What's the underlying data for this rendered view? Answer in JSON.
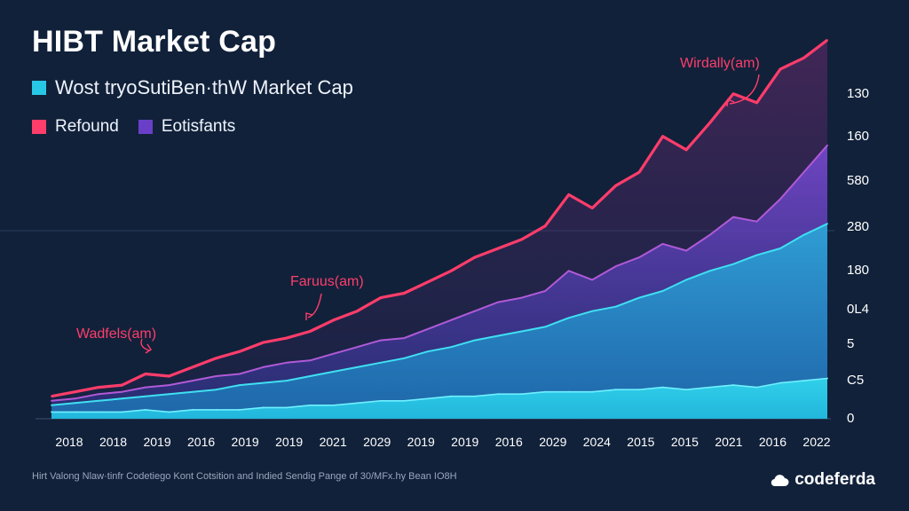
{
  "title": "HIBT Market Cap",
  "footer": "Hirt Valong Nlaw·tinfr Codetiego Kont Cotsition and Indied Sendig Pange of 30/MFx.hy Bean IO8H",
  "brand": {
    "name": "codeferda",
    "icon": "cloud-icon"
  },
  "colors": {
    "background": "#11213a",
    "red": "#ff3d6b",
    "purple": "#6a3fc8",
    "cyan": "#27c8e6"
  },
  "chart_data": {
    "type": "area",
    "title": "HIBT Market Cap",
    "legend": [
      {
        "name": "Wost tryoSutiBen·thW Market Cap",
        "color": "#27c8e6"
      },
      {
        "name": "Refound",
        "color": "#ff3d6b"
      },
      {
        "name": "Eotisfants",
        "color": "#6a3fc8"
      }
    ],
    "legend_placement": "top-left",
    "x_ticks": [
      "2018",
      "2018",
      "2019",
      "2016",
      "2019",
      "2019",
      "2021",
      "2029",
      "2019",
      "2019",
      "2016",
      "2029",
      "2024",
      "2015",
      "2015",
      "2021",
      "2016",
      "2022"
    ],
    "y_ticks": [
      "130",
      "160",
      "580",
      "280",
      "180",
      "0L4",
      "5",
      "C5",
      "0"
    ],
    "grid": false,
    "series": [
      {
        "name": "Refound",
        "color": "#ff3d6b",
        "values": [
          4,
          6,
          8,
          9,
          14,
          13,
          17,
          21,
          24,
          28,
          30,
          33,
          38,
          42,
          48,
          50,
          55,
          60,
          66,
          70,
          74,
          80,
          94,
          88,
          98,
          104,
          120,
          114,
          126,
          139,
          135,
          150,
          155,
          163
        ]
      },
      {
        "name": "Eotisfants",
        "color": "#6a3fc8",
        "values": [
          2,
          3,
          5,
          6,
          8,
          9,
          11,
          13,
          14,
          17,
          19,
          20,
          23,
          26,
          29,
          30,
          34,
          38,
          42,
          46,
          48,
          51,
          60,
          56,
          62,
          66,
          72,
          69,
          76,
          84,
          82,
          92,
          104,
          116
        ]
      },
      {
        "name": "Wost tryoSutiBen·thW Market Cap",
        "color": "#27c8e6",
        "values": [
          0,
          1,
          2,
          3,
          4,
          5,
          6,
          7,
          9,
          10,
          11,
          13,
          15,
          17,
          19,
          21,
          24,
          26,
          29,
          31,
          33,
          35,
          39,
          42,
          44,
          48,
          51,
          56,
          60,
          63,
          67,
          70,
          76,
          81
        ]
      },
      {
        "name": "Wost tryoSutiBen·thW Market Cap (lower)",
        "color": "#27c8e6",
        "values": [
          -3,
          -3,
          -3,
          -3,
          -2,
          -3,
          -2,
          -2,
          -2,
          -1,
          -1,
          0,
          0,
          1,
          2,
          2,
          3,
          4,
          4,
          5,
          5,
          6,
          6,
          6,
          7,
          7,
          8,
          7,
          8,
          9,
          8,
          10,
          11,
          12
        ]
      }
    ],
    "annotations": [
      {
        "text": "Wadfels(am)",
        "color": "#ff3d6b"
      },
      {
        "text": "Faruus(am)",
        "color": "#ff3d6b"
      },
      {
        "text": "Wirdally(am)",
        "color": "#ff3d6b"
      }
    ]
  }
}
